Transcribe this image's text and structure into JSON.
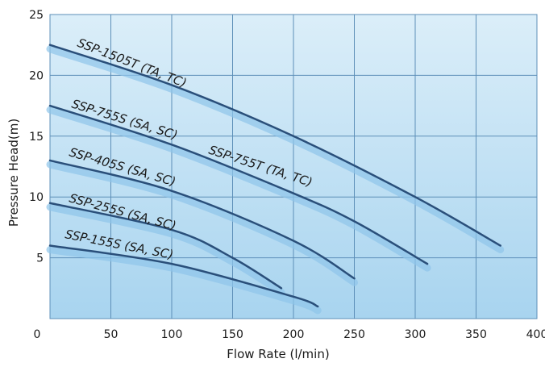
{
  "chart_data": {
    "type": "line",
    "xlabel": "Flow Rate (l/min)",
    "ylabel": "Pressure Head(m)",
    "xlim": [
      0,
      400
    ],
    "ylim": [
      0,
      25
    ],
    "xticks": [
      0,
      50,
      100,
      150,
      200,
      250,
      300,
      350,
      400
    ],
    "yticks": [
      5,
      10,
      15,
      20,
      25
    ],
    "grid": true,
    "colors": {
      "plot_bg_top": "#dbeef9",
      "plot_bg_bottom": "#a8d4ef",
      "grid": "#5d8fb8",
      "curve": "#2a4f7a",
      "curve_shadow": "#8fc4ea",
      "label": "#1a1a1a"
    },
    "series": [
      {
        "name": "SSP-1505T (TA, TC)",
        "x": [
          0,
          100,
          200,
          300,
          370
        ],
        "y": [
          22.5,
          19.2,
          15.0,
          10.0,
          6.0
        ]
      },
      {
        "name": "SSP-755S (SA, SC)",
        "x": [
          0,
          100,
          200,
          250,
          310
        ],
        "y": [
          17.5,
          14.3,
          10.3,
          8.0,
          4.5
        ]
      },
      {
        "name": "SSP-755T (TA, TC)",
        "x": [],
        "y": []
      },
      {
        "name": "SSP-405S (SA, SC)",
        "x": [
          0,
          100,
          200,
          250
        ],
        "y": [
          13.0,
          10.5,
          6.4,
          3.3
        ]
      },
      {
        "name": "SSP-255S (SA, SC)",
        "x": [
          0,
          100,
          150,
          190
        ],
        "y": [
          9.5,
          7.3,
          5.0,
          2.5
        ]
      },
      {
        "name": "SSP-155S (SA, SC)",
        "x": [
          0,
          100,
          200,
          220
        ],
        "y": [
          6.0,
          4.5,
          1.8,
          1.0
        ]
      }
    ]
  }
}
